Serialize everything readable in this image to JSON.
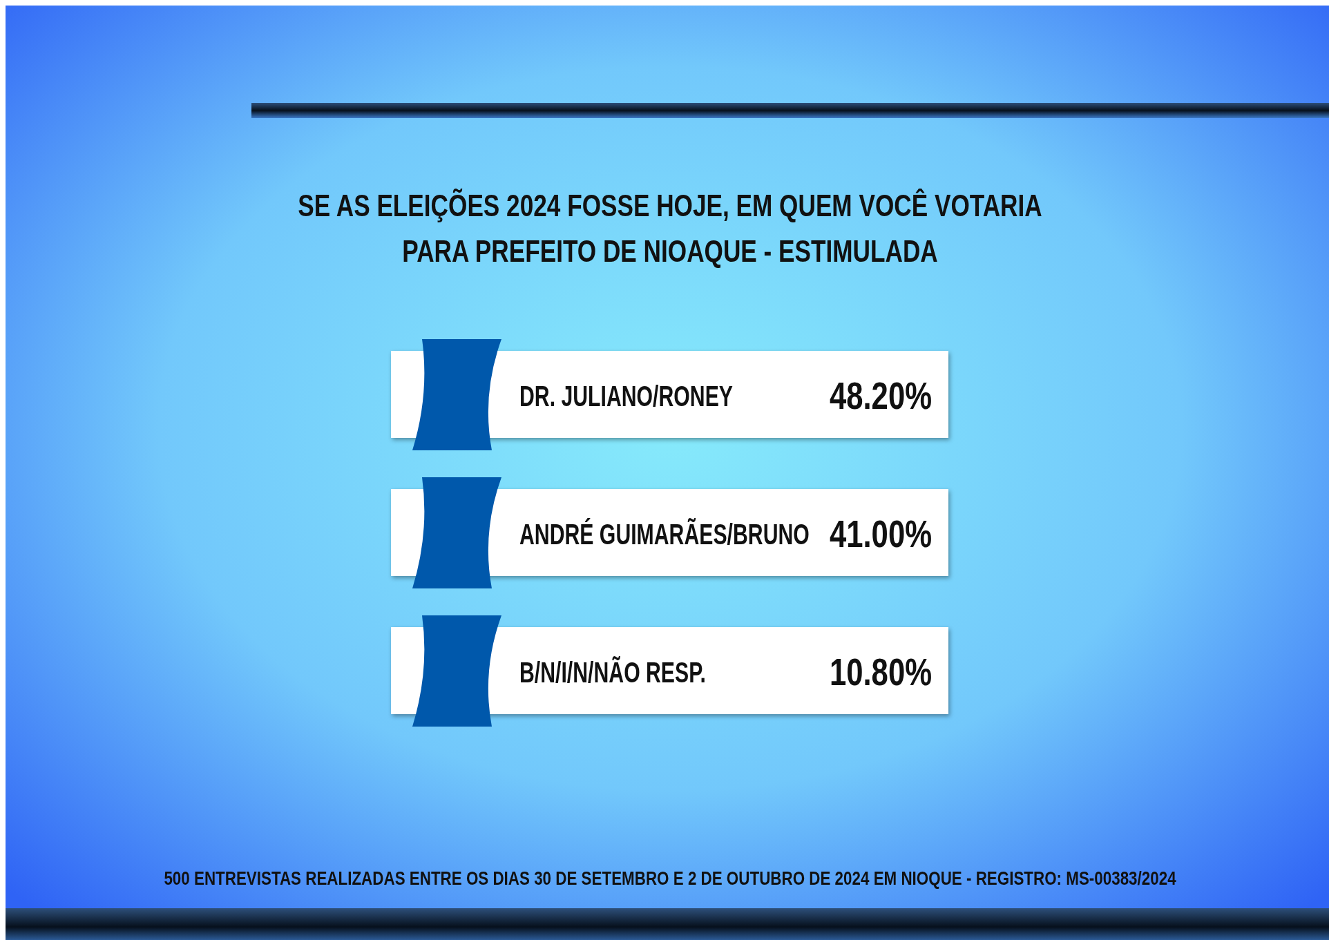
{
  "chart_data": {
    "type": "other",
    "title": "SE AS ELEIÇÕES 2024 FOSSE HOJE, EM QUEM VOCÊ VOTARIA\nPARA PREFEITO DE NIOAQUE - ESTIMULADA",
    "categories": [
      "DR. JULIANO/RONEY",
      "ANDRÉ GUIMARÃES/BRUNO",
      "B/N/I/N/NÃO RESP."
    ],
    "values": [
      48.2,
      41.0,
      10.8
    ],
    "value_labels": [
      "48.20%",
      "41.00%",
      "10.80%"
    ],
    "color": "#ffffff",
    "annotations": [
      "500 ENTREVISTAS REALIZADAS ENTRE OS DIAS 30 DE SETEMBRO E 2 DE OUTUBRO DE 2024 EM NIOQUE - REGISTRO: MS-00383/2024"
    ]
  }
}
